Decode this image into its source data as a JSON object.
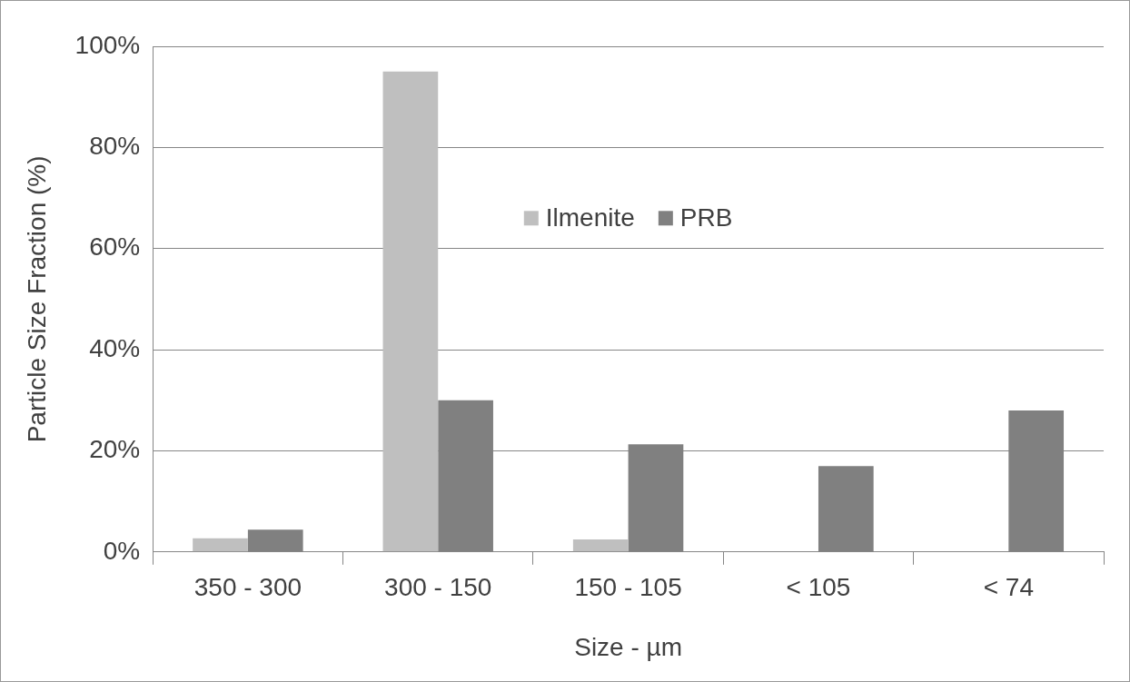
{
  "chart_data": {
    "type": "bar",
    "xlabel": "Size - µm",
    "ylabel": "Particle Size Fraction (%)",
    "categories": [
      "350 - 300",
      "300 - 150",
      "150 - 105",
      "< 105",
      "< 74"
    ],
    "series": [
      {
        "name": "Ilmenite",
        "color": "#bfbfbf",
        "values": [
          2.7,
          95,
          2.5,
          0,
          0
        ]
      },
      {
        "name": "PRB",
        "color": "#808080",
        "values": [
          4.4,
          30,
          21.3,
          17,
          28
        ]
      }
    ],
    "ylim": [
      0,
      100
    ],
    "yticks": [
      {
        "value": 0,
        "label": "0%"
      },
      {
        "value": 20,
        "label": "20%"
      },
      {
        "value": 40,
        "label": "40%"
      },
      {
        "value": 60,
        "label": "60%"
      },
      {
        "value": 80,
        "label": "80%"
      },
      {
        "value": 100,
        "label": "100%"
      }
    ],
    "grid": "y",
    "legend": "top"
  }
}
